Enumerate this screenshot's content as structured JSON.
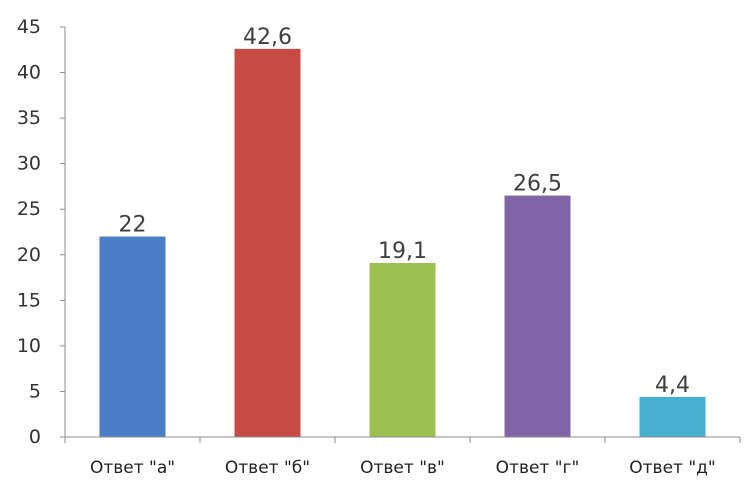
{
  "chart_data": {
    "type": "bar",
    "categories": [
      "Ответ \"а\"",
      "Ответ \"б\"",
      "Ответ \"в\"",
      "Ответ \"г\"",
      "Ответ \"д\""
    ],
    "values": [
      22,
      42.6,
      19.1,
      26.5,
      4.4
    ],
    "data_labels": [
      "22",
      "42,6",
      "19,1",
      "26,5",
      "4,4"
    ],
    "colors": [
      "#4a7ec7",
      "#c84a44",
      "#9dc151",
      "#8064a8",
      "#45b0cf"
    ],
    "title": "",
    "xlabel": "",
    "ylabel": "",
    "ylim": [
      0,
      45
    ],
    "yticks": [
      0,
      5,
      10,
      15,
      20,
      25,
      30,
      35,
      40,
      45
    ],
    "grid": false,
    "legend": "none"
  }
}
